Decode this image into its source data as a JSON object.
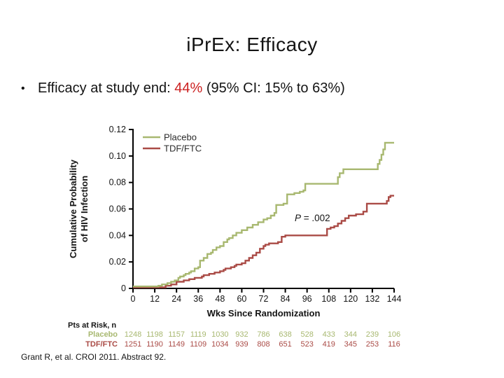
{
  "slide": {
    "title": "iPrEx: Efficacy",
    "bullet_char": "•",
    "bullet": {
      "pre": "Efficacy at study end: ",
      "highlight": "44%",
      "post": " (95% CI: 15% to 63%)"
    },
    "footer": "Grant R, et al. CROI 2011. Abstract 92."
  },
  "colors": {
    "placebo_green": "#a8b870",
    "tdf_red": "#aa4b46",
    "highlight_red": "#cc2222",
    "axis_black": "#000000",
    "legend_text": "#2b2b2b"
  },
  "chart_data": {
    "type": "line",
    "subtype": "kaplan-meier-step",
    "title": "",
    "xlabel": "Wks Since Randomization",
    "ylabel": "Cumulative Probability of HIV Infection",
    "ylabel_lines": [
      "Cumulative Probability",
      "of HIV Infection"
    ],
    "xlim": [
      0,
      144
    ],
    "ylim": [
      0,
      0.12
    ],
    "xticks": [
      0,
      12,
      24,
      36,
      48,
      60,
      72,
      84,
      96,
      108,
      120,
      132,
      144
    ],
    "yticks": [
      0,
      0.02,
      0.04,
      0.06,
      0.08,
      0.1,
      0.12
    ],
    "ytick_labels": [
      "0",
      "0.02",
      "0.04",
      "0.06",
      "0.08",
      "0.10",
      "0.12"
    ],
    "grid": false,
    "legend_position": "top-left-inside",
    "annotation": {
      "italic": "P",
      "rest": " = .002"
    },
    "series": [
      {
        "name": "Placebo",
        "color": "#a8b870",
        "step": true,
        "points": [
          [
            0,
            0.0015
          ],
          [
            13,
            0.0015
          ],
          [
            14,
            0.002
          ],
          [
            16,
            0.003
          ],
          [
            19,
            0.004
          ],
          [
            21,
            0.005
          ],
          [
            23,
            0.006
          ],
          [
            25,
            0.008
          ],
          [
            26,
            0.009
          ],
          [
            28,
            0.01
          ],
          [
            29,
            0.011
          ],
          [
            31,
            0.012
          ],
          [
            32,
            0.013
          ],
          [
            34,
            0.015
          ],
          [
            36,
            0.016
          ],
          [
            37,
            0.021
          ],
          [
            39,
            0.023
          ],
          [
            41,
            0.026
          ],
          [
            43,
            0.027
          ],
          [
            44,
            0.029
          ],
          [
            46,
            0.031
          ],
          [
            48,
            0.032
          ],
          [
            50,
            0.035
          ],
          [
            52,
            0.037
          ],
          [
            53,
            0.038
          ],
          [
            55,
            0.04
          ],
          [
            57,
            0.042
          ],
          [
            60,
            0.044
          ],
          [
            63,
            0.046
          ],
          [
            66,
            0.048
          ],
          [
            69,
            0.05
          ],
          [
            72,
            0.052
          ],
          [
            74,
            0.053
          ],
          [
            76,
            0.055
          ],
          [
            78,
            0.057
          ],
          [
            79,
            0.063
          ],
          [
            83,
            0.064
          ],
          [
            85,
            0.071
          ],
          [
            89,
            0.072
          ],
          [
            92,
            0.073
          ],
          [
            94,
            0.074
          ],
          [
            95,
            0.079
          ],
          [
            112,
            0.079
          ],
          [
            113,
            0.084
          ],
          [
            114,
            0.087
          ],
          [
            116,
            0.09
          ],
          [
            134,
            0.09
          ],
          [
            135,
            0.094
          ],
          [
            136,
            0.097
          ],
          [
            137,
            0.101
          ],
          [
            138,
            0.105
          ],
          [
            139,
            0.11
          ],
          [
            144,
            0.11
          ]
        ]
      },
      {
        "name": "TDF/FTC",
        "color": "#aa4b46",
        "step": true,
        "points": [
          [
            0,
            0.0008
          ],
          [
            17,
            0.0008
          ],
          [
            18,
            0.002
          ],
          [
            21,
            0.003
          ],
          [
            24,
            0.005
          ],
          [
            28,
            0.006
          ],
          [
            31,
            0.007
          ],
          [
            34,
            0.008
          ],
          [
            38,
            0.009
          ],
          [
            39,
            0.01
          ],
          [
            42,
            0.011
          ],
          [
            45,
            0.012
          ],
          [
            48,
            0.013
          ],
          [
            50,
            0.014
          ],
          [
            51,
            0.015
          ],
          [
            54,
            0.016
          ],
          [
            56,
            0.017
          ],
          [
            57,
            0.018
          ],
          [
            60,
            0.019
          ],
          [
            62,
            0.021
          ],
          [
            64,
            0.023
          ],
          [
            66,
            0.025
          ],
          [
            68,
            0.027
          ],
          [
            70,
            0.03
          ],
          [
            72,
            0.032
          ],
          [
            73,
            0.033
          ],
          [
            75,
            0.034
          ],
          [
            80,
            0.035
          ],
          [
            82,
            0.039
          ],
          [
            84,
            0.04
          ],
          [
            106,
            0.04
          ],
          [
            107,
            0.045
          ],
          [
            109,
            0.046
          ],
          [
            111,
            0.047
          ],
          [
            113,
            0.049
          ],
          [
            115,
            0.051
          ],
          [
            117,
            0.053
          ],
          [
            119,
            0.055
          ],
          [
            123,
            0.056
          ],
          [
            127,
            0.058
          ],
          [
            129,
            0.064
          ],
          [
            139,
            0.064
          ],
          [
            140,
            0.066
          ],
          [
            141,
            0.069
          ],
          [
            142,
            0.07
          ],
          [
            144,
            0.07
          ]
        ]
      }
    ]
  },
  "risk_table": {
    "heading": "Pts at Risk, n",
    "weeks": [
      0,
      12,
      24,
      36,
      48,
      60,
      72,
      84,
      96,
      108,
      120,
      132,
      144
    ],
    "rows": [
      {
        "label": "Placebo",
        "color": "#a8b870",
        "values": [
          1248,
          1198,
          1157,
          1119,
          1030,
          932,
          786,
          638,
          528,
          433,
          344,
          239,
          106
        ]
      },
      {
        "label": "TDF/FTC",
        "color": "#aa4b46",
        "values": [
          1251,
          1190,
          1149,
          1109,
          1034,
          939,
          808,
          651,
          523,
          419,
          345,
          253,
          116
        ]
      }
    ]
  }
}
